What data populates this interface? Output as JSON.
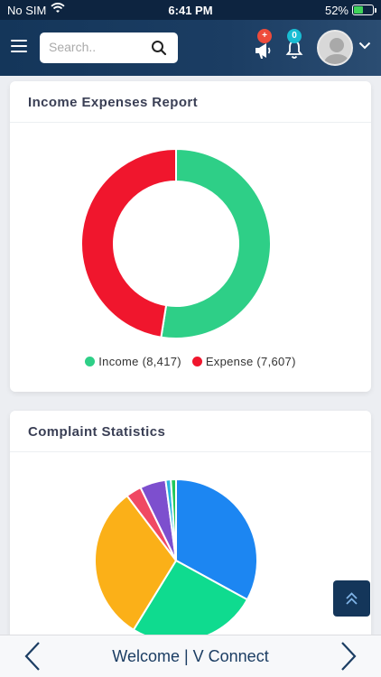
{
  "status_bar": {
    "carrier": "No SIM",
    "time": "6:41 PM",
    "battery": "52%",
    "battery_level": 0.52
  },
  "header": {
    "search_placeholder": "Search..",
    "notification_badge": "+",
    "bell_count": "0",
    "icons": [
      "menu-icon",
      "search-icon",
      "megaphone-icon",
      "bell-icon",
      "avatar",
      "chevron-down-icon"
    ]
  },
  "income_card": {
    "title": "Income Expenses Report",
    "legend": [
      {
        "label": "Income (8,417)",
        "color": "#2ecf87"
      },
      {
        "label": "Expense (7,607)",
        "color": "#f0162d"
      }
    ]
  },
  "complaint_card": {
    "title": "Complaint Statistics"
  },
  "chart_data": [
    {
      "type": "pie",
      "variant": "donut",
      "title": "Income Expenses Report",
      "categories": [
        "Income",
        "Expense"
      ],
      "values": [
        8417,
        7607
      ],
      "colors": [
        "#2ecf87",
        "#f0162d"
      ],
      "legend_position": "bottom"
    },
    {
      "type": "pie",
      "title": "Complaint Statistics",
      "values": [
        32,
        25,
        30,
        3,
        5,
        1,
        1
      ],
      "colors": [
        "#1c86f2",
        "#0fdb8f",
        "#fbb018",
        "#f04963",
        "#7d4fce",
        "#29b3e0",
        "#22c95b"
      ]
    }
  ],
  "bottom_bar": {
    "title": "Welcome | V Connect"
  }
}
